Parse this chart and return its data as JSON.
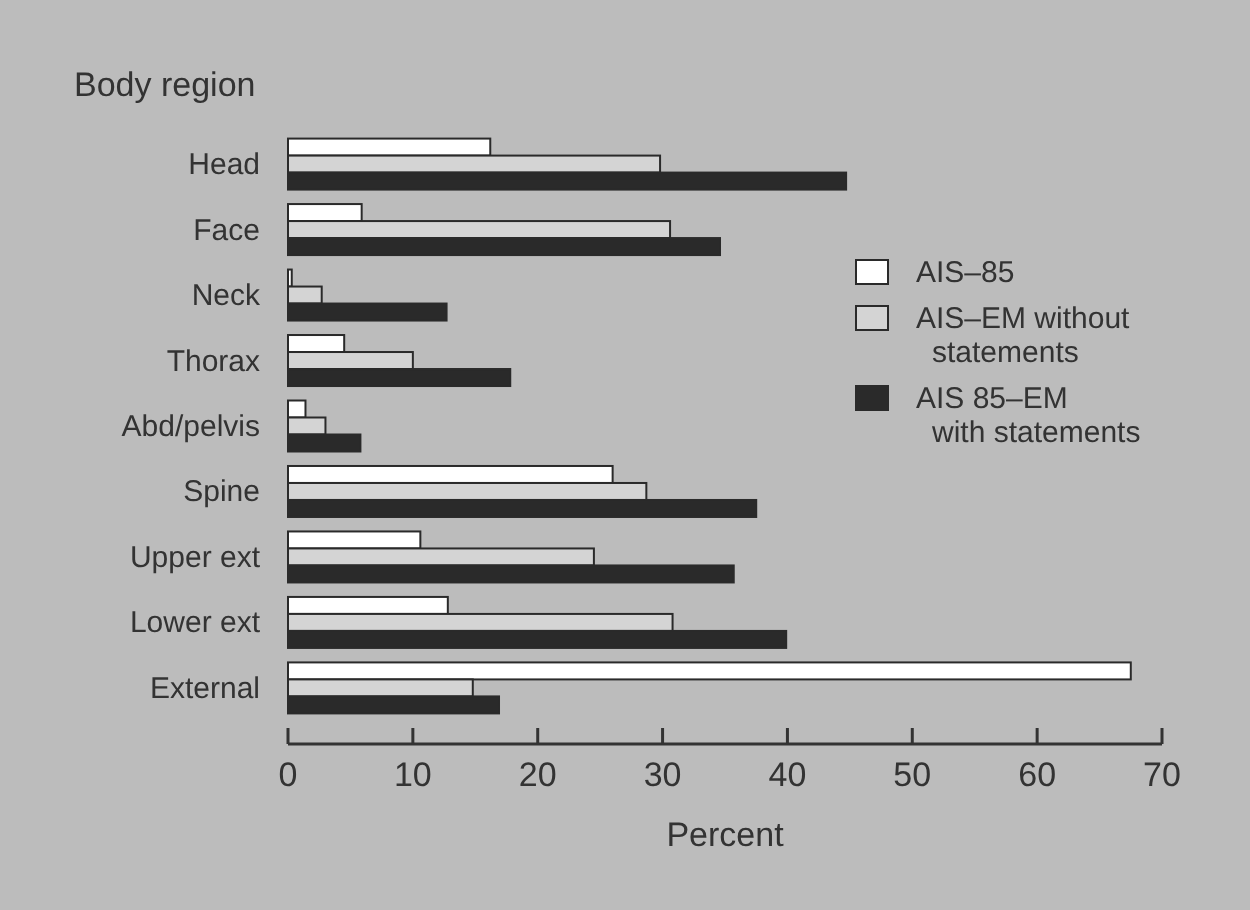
{
  "chart_data": {
    "type": "bar",
    "orientation": "horizontal",
    "ylabel": "Body region",
    "xlabel": "Percent",
    "categories": [
      "Head",
      "Face",
      "Neck",
      "Thorax",
      "Abd/pelvis",
      "Spine",
      "Upper ext",
      "Lower ext",
      "External"
    ],
    "series": [
      {
        "name": "AIS–85",
        "color": "#ffffff",
        "values": [
          16.2,
          5.9,
          0.3,
          4.5,
          1.4,
          26,
          10.6,
          12.8,
          67.5
        ]
      },
      {
        "name": "AIS–EM without\nstatements",
        "color": "#d4d4d4",
        "values": [
          29.8,
          30.6,
          2.7,
          10,
          3,
          28.7,
          24.5,
          30.8,
          14.8
        ]
      },
      {
        "name": "AIS 85–EM\nwith statements",
        "color": "#2a2a2a",
        "values": [
          44.7,
          34.6,
          12.7,
          17.8,
          5.8,
          37.5,
          35.7,
          39.9,
          16.9
        ]
      }
    ],
    "xlim": [
      0,
      70
    ],
    "xticks": [
      0,
      10,
      20,
      30,
      40,
      50,
      60,
      70
    ],
    "legend": "right",
    "grid": false
  }
}
